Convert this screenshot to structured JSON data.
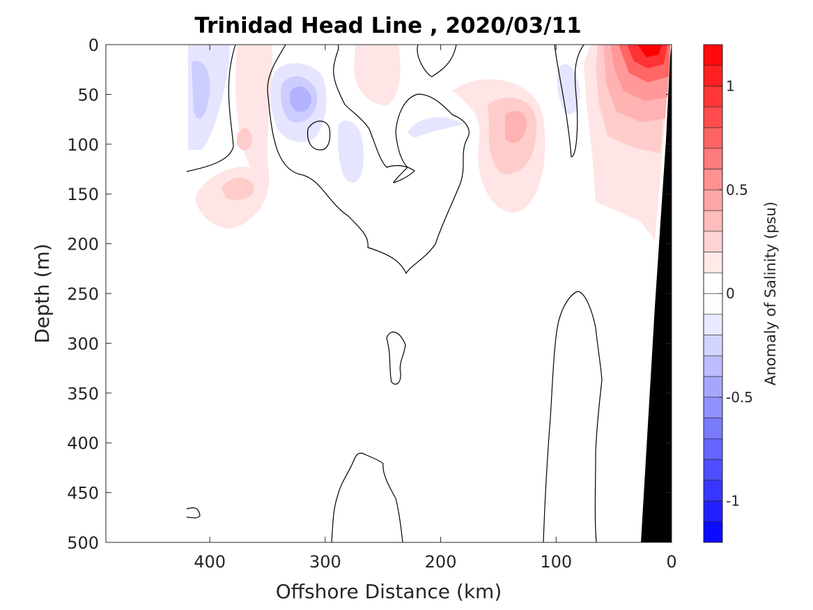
{
  "chart_data": {
    "type": "heatmap",
    "title": "Trinidad Head Line , 2020/03/11",
    "xlabel": "Offshore Distance (km)",
    "ylabel": "Depth (m)",
    "xlim": [
      490,
      0
    ],
    "ylim": [
      0,
      500
    ],
    "x_ticks": [
      "400",
      "300",
      "200",
      "100",
      "0"
    ],
    "y_ticks": [
      "0",
      "50",
      "100",
      "150",
      "200",
      "250",
      "300",
      "350",
      "400",
      "450",
      "500"
    ],
    "colorbar": {
      "label": "Anomaly of Salinity (psu)",
      "range": [
        -1.2,
        1.2
      ],
      "step": 0.1,
      "ticks": [
        "1",
        "0.5",
        "0",
        "-0.5",
        "-1"
      ]
    },
    "zero_contour_drawn": true,
    "bathymetry_color": "#000000",
    "anomaly_features": [
      {
        "x_km": 20,
        "depth_m": 10,
        "value": 1.1
      },
      {
        "x_km": 30,
        "depth_m": 60,
        "value": 0.5
      },
      {
        "x_km": 140,
        "depth_m": 85,
        "value": 0.3
      },
      {
        "x_km": 335,
        "depth_m": 55,
        "value": -0.3
      },
      {
        "x_km": 400,
        "depth_m": 50,
        "value": -0.15
      },
      {
        "x_km": 380,
        "depth_m": 140,
        "value": 0.2
      },
      {
        "x_km": 245,
        "depth_m": 40,
        "value": 0.1
      },
      {
        "x_km": 270,
        "depth_m": 110,
        "value": -0.1
      },
      {
        "x_km": 100,
        "depth_m": 60,
        "value": -0.1
      },
      {
        "x_km": 210,
        "depth_m": 80,
        "value": -0.1
      }
    ],
    "colors": {
      "positive_max": "#ff0000",
      "negative_max": "#0000ff",
      "neutral": "#ffffff"
    }
  }
}
